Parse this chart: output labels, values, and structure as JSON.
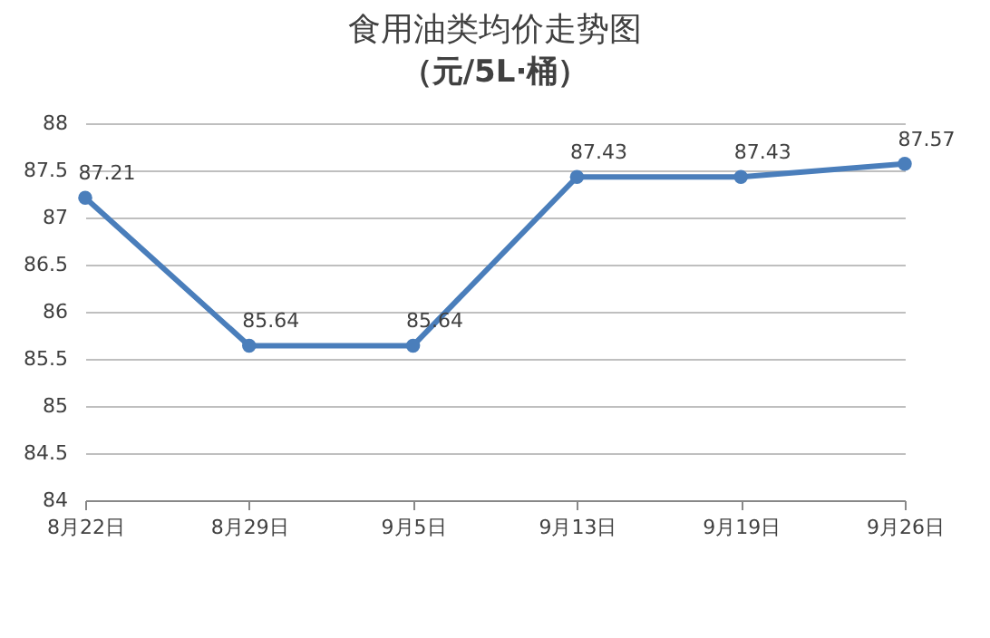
{
  "chart_data": {
    "type": "line",
    "title": "食用油类均价走势图",
    "subtitle": "（元/5L·桶）",
    "categories": [
      "8月22日",
      "8月29日",
      "9月5日",
      "9月13日",
      "9月19日",
      "9月26日"
    ],
    "series": [
      {
        "color": "#4a7ebb",
        "values": [
          87.21,
          85.64,
          85.64,
          87.43,
          87.43,
          87.57
        ]
      }
    ],
    "ylim": [
      84,
      88
    ],
    "yticks": [
      84,
      84.5,
      85,
      85.5,
      86,
      86.5,
      87,
      87.5,
      88
    ],
    "grid": "y",
    "marker": "circle",
    "data_labels": true
  }
}
